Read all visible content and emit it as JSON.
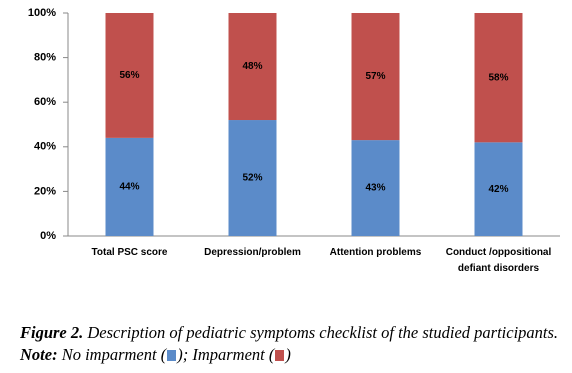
{
  "chart_data": {
    "type": "stacked_bar",
    "categories": [
      "Total PSC score",
      "Depression/problem",
      "Attention problems",
      "Conduct /oppositional defiant disorders"
    ],
    "series": [
      {
        "name": "No imparment",
        "color": "#5b8bc9",
        "values": [
          44,
          52,
          43,
          42
        ],
        "value_labels": [
          "44%",
          "52%",
          "43%",
          "42%"
        ]
      },
      {
        "name": "Imparment",
        "color": "#c0504d",
        "values": [
          56,
          48,
          57,
          58
        ],
        "value_labels": [
          "56%",
          "48%",
          "57%",
          "58%"
        ]
      }
    ],
    "ylim": [
      0,
      100
    ],
    "yticks": [
      {
        "value": 0,
        "label": "0%"
      },
      {
        "value": 20,
        "label": "20%"
      },
      {
        "value": 40,
        "label": "40%"
      },
      {
        "value": 60,
        "label": "60%"
      },
      {
        "value": 80,
        "label": "80%"
      },
      {
        "value": 100,
        "label": "100%"
      }
    ],
    "grid": false
  },
  "caption": {
    "figure": "Figure 2.",
    "text": "Description of pediatric symptoms checklist of the studied participants.",
    "note": "Note:",
    "brackets": [
      "(",
      ");",
      "(",
      ")"
    ]
  }
}
